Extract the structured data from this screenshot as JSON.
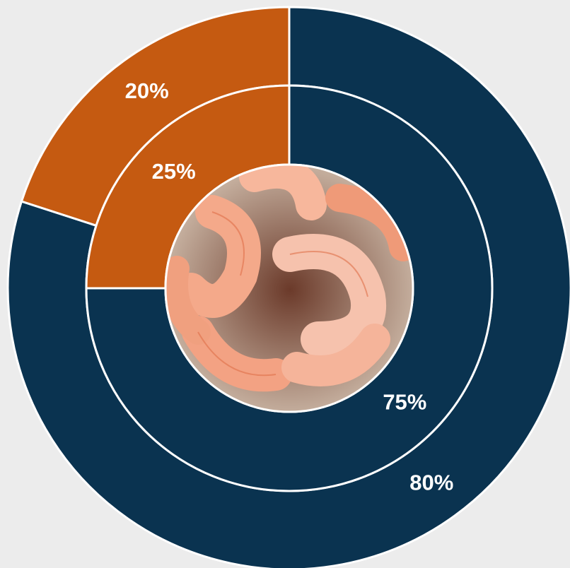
{
  "chart_data": {
    "type": "donut",
    "colors": [
      "#0a3350",
      "#c55a11"
    ],
    "series": [
      {
        "values": [
          80,
          20
        ],
        "value_labels": [
          "80%",
          "20%"
        ]
      },
      {
        "values": [
          75,
          25
        ],
        "value_labels": [
          "75%",
          "25%"
        ]
      }
    ]
  }
}
